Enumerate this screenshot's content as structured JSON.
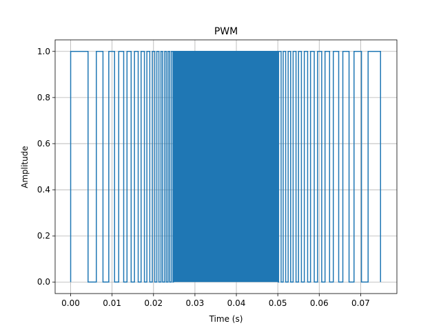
{
  "chart_data": {
    "type": "line",
    "title": "PWM",
    "xlabel": "Time (s)",
    "ylabel": "Amplitude",
    "xlim": [
      -0.00375,
      0.07875
    ],
    "ylim": [
      -0.05,
      1.05
    ],
    "xticks": [
      0.0,
      0.01,
      0.02,
      0.03,
      0.04,
      0.05,
      0.06,
      0.07
    ],
    "xtick_labels": [
      "0.00",
      "0.01",
      "0.02",
      "0.03",
      "0.04",
      "0.05",
      "0.06",
      "0.07"
    ],
    "yticks": [
      0.0,
      0.2,
      0.4,
      0.6,
      0.8,
      1.0
    ],
    "ytick_labels": [
      "0.0",
      "0.2",
      "0.4",
      "0.6",
      "0.8",
      "1.0"
    ],
    "grid": true,
    "color": "#1f77b4",
    "series": [
      {
        "pulses_start_end": [
          [
            0.0,
            0.0042
          ],
          [
            0.0062,
            0.0078
          ],
          [
            0.0092,
            0.0106
          ],
          [
            0.0116,
            0.0128
          ],
          [
            0.0136,
            0.0146
          ],
          [
            0.0154,
            0.0163
          ],
          [
            0.017,
            0.0178
          ],
          [
            0.0184,
            0.0191
          ],
          [
            0.0197,
            0.0203
          ],
          [
            0.0208,
            0.0213
          ],
          [
            0.0218,
            0.0222
          ],
          [
            0.0227,
            0.0231
          ],
          [
            0.0235,
            0.0239
          ],
          [
            0.0243,
            0.0247
          ]
        ],
        "dense_region": [
          0.0248,
          0.0501
        ],
        "pulses_end": [
          [
            0.0502,
            0.0508
          ],
          [
            0.0513,
            0.0519
          ],
          [
            0.0525,
            0.0531
          ],
          [
            0.0537,
            0.0544
          ],
          [
            0.055,
            0.0557
          ],
          [
            0.0564,
            0.0572
          ],
          [
            0.0579,
            0.0588
          ],
          [
            0.0596,
            0.0606
          ],
          [
            0.0614,
            0.0625
          ],
          [
            0.0634,
            0.0647
          ],
          [
            0.0657,
            0.0672
          ],
          [
            0.0684,
            0.0702
          ],
          [
            0.0718,
            0.0748
          ]
        ],
        "x_end": 0.0748
      }
    ]
  }
}
